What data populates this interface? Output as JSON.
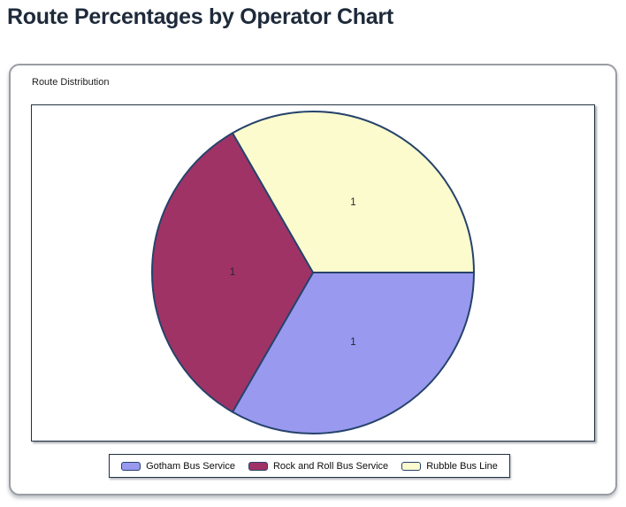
{
  "header": {
    "title": "Route Percentages by Operator Chart"
  },
  "panel": {
    "label": "Route Distribution"
  },
  "chart_data": {
    "type": "pie",
    "title": "Route Distribution",
    "start_angle_deg": 0,
    "direction": "clockwise",
    "outline_color": "#26436b",
    "data_label_color": "#26262e",
    "legend_position": "bottom",
    "slices": [
      {
        "label": "Gotham Bus Service",
        "value": 1,
        "data_label": "1",
        "color": "#9999f0"
      },
      {
        "label": "Rock and Roll Bus Service",
        "value": 1,
        "data_label": "1",
        "color": "#a03366"
      },
      {
        "label": "Rubble Bus Line",
        "value": 1,
        "data_label": "1",
        "color": "#fbfbce"
      }
    ]
  }
}
